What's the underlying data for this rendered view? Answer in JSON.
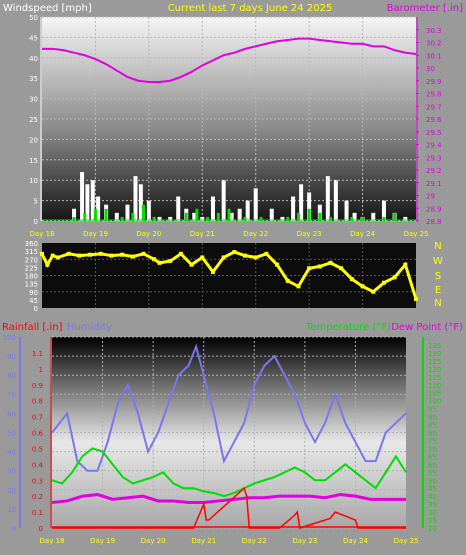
{
  "header": {
    "left_label": "Windspeed [mph]",
    "center_label": "Current last 7 days June 24 2025",
    "right_label": "Barometer [.in]"
  },
  "bottom_header": {
    "rain_label": "Rainfall [.in]",
    "humidity_label": "Humidity",
    "temp_label": "Temperature (°F)",
    "dew_label": "Dew Point (°F)"
  },
  "colors": {
    "wind": "#ffffff",
    "gust_green": "#00e000",
    "barometer": "#e000e0",
    "direction": "#ffff00",
    "rain": "#ff0000",
    "humidity": "#7777ee",
    "temperature": "#00dd00",
    "dewpoint": "#e000e0",
    "outer_bg": "#9a9a9a"
  },
  "chart_data": [
    {
      "id": "wind-baro",
      "type": "line",
      "x_labels": [
        "Day 18",
        "Day 19",
        "Day 20",
        "Day 21",
        "Day 22",
        "Day 23",
        "Day 24",
        "Day 25"
      ],
      "left_axis": {
        "label": "Windspeed [mph]",
        "ylim": [
          0,
          50
        ],
        "ticks": [
          0,
          5,
          10,
          15,
          20,
          25,
          30,
          35,
          40,
          45,
          50
        ]
      },
      "right_axis": {
        "label": "Barometer [.in]",
        "ylim": [
          28.8,
          30.4
        ],
        "ticks": [
          "28.8",
          "28.9",
          "29",
          "29.1",
          "29.2",
          "29.3",
          "29.4",
          "29.5",
          "29.6",
          "29.7",
          "29.8",
          "29.9",
          "30",
          "30.1",
          "30.2",
          "30.3"
        ]
      },
      "series": [
        {
          "name": "Barometer",
          "axis": "right",
          "x": [
            0,
            0.2,
            0.4,
            0.6,
            0.8,
            1.0,
            1.2,
            1.4,
            1.6,
            1.8,
            2.0,
            2.2,
            2.4,
            2.6,
            2.8,
            3.0,
            3.2,
            3.4,
            3.6,
            3.8,
            4.0,
            4.2,
            4.4,
            4.6,
            4.8,
            5.0,
            5.2,
            5.4,
            5.6,
            5.8,
            6.0,
            6.2,
            6.4,
            6.6,
            6.8,
            7.0
          ],
          "values": [
            30.15,
            30.15,
            30.14,
            30.12,
            30.1,
            30.07,
            30.03,
            29.98,
            29.93,
            29.9,
            29.89,
            29.89,
            29.9,
            29.93,
            29.97,
            30.02,
            30.06,
            30.1,
            30.12,
            30.15,
            30.17,
            30.19,
            30.21,
            30.22,
            30.23,
            30.23,
            30.22,
            30.21,
            30.2,
            30.19,
            30.19,
            30.17,
            30.17,
            30.14,
            30.12,
            30.11
          ]
        },
        {
          "name": "Windspeed",
          "axis": "left",
          "x": [
            0.6,
            0.75,
            0.85,
            0.95,
            1.05,
            1.2,
            1.4,
            1.6,
            1.75,
            1.85,
            2.0,
            2.2,
            2.4,
            2.55,
            2.7,
            2.85,
            3.0,
            3.2,
            3.4,
            3.55,
            3.7,
            3.85,
            4.0,
            4.3,
            4.5,
            4.7,
            4.85,
            5.0,
            5.2,
            5.35,
            5.5,
            5.7,
            5.85,
            6.0,
            6.2,
            6.4,
            6.6,
            6.8
          ],
          "values": [
            3,
            12,
            9,
            10,
            6,
            4,
            2,
            4,
            11,
            9,
            5,
            1,
            1,
            6,
            3,
            2,
            1,
            6,
            10,
            2,
            3,
            5,
            8,
            3,
            1,
            6,
            9,
            7,
            4,
            11,
            10,
            5,
            2,
            1,
            2,
            5,
            2,
            1
          ]
        },
        {
          "name": "Gust",
          "axis": "left",
          "x": [
            0.6,
            0.8,
            1.0,
            1.2,
            1.5,
            1.7,
            1.9,
            2.1,
            2.4,
            2.7,
            2.9,
            3.1,
            3.3,
            3.5,
            3.8,
            4.1,
            4.4,
            4.6,
            4.8,
            5.0,
            5.2,
            5.4,
            5.6,
            5.8,
            6.0,
            6.2,
            6.4,
            6.6,
            6.8
          ],
          "values": [
            1,
            2,
            3,
            3,
            1,
            2,
            4,
            1,
            0,
            2,
            3,
            1,
            2,
            3,
            1,
            1,
            0,
            1,
            2,
            3,
            2,
            1,
            0,
            1,
            1,
            0,
            1,
            2,
            0
          ]
        }
      ]
    },
    {
      "id": "wind-direction",
      "type": "scatter",
      "x_labels": [
        "Day 18",
        "Day 19",
        "Day 20",
        "Day 21",
        "Day 22",
        "Day 23",
        "Day 24",
        "Day 25"
      ],
      "left_axis": {
        "ylim": [
          0,
          360
        ],
        "ticks": [
          0,
          45,
          90,
          135,
          180,
          225,
          270,
          315,
          360
        ]
      },
      "right_axis": {
        "ticks": [
          "N",
          "W",
          "S",
          "E",
          "N"
        ]
      },
      "series": [
        {
          "name": "Wind Direction",
          "x": [
            0,
            0.1,
            0.2,
            0.3,
            0.5,
            0.7,
            0.9,
            1.1,
            1.3,
            1.5,
            1.7,
            1.9,
            2.1,
            2.2,
            2.4,
            2.6,
            2.8,
            3.0,
            3.2,
            3.4,
            3.6,
            3.8,
            4.0,
            4.2,
            4.4,
            4.6,
            4.8,
            5.0,
            5.2,
            5.4,
            5.6,
            5.8,
            6.0,
            6.2,
            6.4,
            6.6,
            6.8,
            7.0
          ],
          "values": [
            300,
            240,
            290,
            280,
            300,
            290,
            295,
            300,
            290,
            295,
            285,
            300,
            270,
            250,
            260,
            300,
            240,
            280,
            200,
            280,
            310,
            290,
            280,
            300,
            240,
            150,
            120,
            220,
            230,
            250,
            220,
            160,
            120,
            90,
            140,
            170,
            240,
            50
          ]
        }
      ]
    },
    {
      "id": "rain-hum-temp",
      "type": "line",
      "x_labels": [
        "Day 18",
        "Day 19",
        "Day 20",
        "Day 21",
        "Day 22",
        "Day 23",
        "Day 24",
        "Day 25"
      ],
      "humidity_axis": {
        "ylim": [
          0,
          100
        ],
        "ticks": [
          0,
          10,
          20,
          30,
          40,
          50,
          60,
          70,
          80,
          90,
          100
        ]
      },
      "rain_axis": {
        "ylim": [
          0,
          1.2
        ],
        "ticks": [
          "0",
          "0.1",
          "0.2",
          "0.3",
          "0.4",
          "0.5",
          "0.6",
          "0.7",
          "0.8",
          "0.9",
          "1",
          "1.1"
        ]
      },
      "temp_axis": {
        "ylim": [
          20,
          140
        ],
        "ticks": [
          20,
          25,
          30,
          35,
          40,
          45,
          50,
          55,
          60,
          65,
          70,
          75,
          80,
          85,
          90,
          95,
          100,
          105,
          110,
          115,
          120,
          125,
          130,
          135
        ]
      },
      "series": [
        {
          "name": "Humidity",
          "axis": "humidity",
          "x": [
            0,
            0.15,
            0.3,
            0.5,
            0.7,
            0.9,
            1.1,
            1.3,
            1.5,
            1.7,
            1.9,
            2.1,
            2.3,
            2.5,
            2.7,
            2.85,
            3.0,
            3.2,
            3.4,
            3.6,
            3.8,
            4.0,
            4.2,
            4.4,
            4.6,
            4.8,
            5.0,
            5.2,
            5.4,
            5.6,
            5.8,
            6.0,
            6.2,
            6.4,
            6.6,
            6.8,
            7.0
          ],
          "values": [
            50,
            55,
            60,
            35,
            30,
            30,
            45,
            65,
            75,
            60,
            40,
            50,
            65,
            80,
            85,
            95,
            80,
            60,
            35,
            45,
            55,
            75,
            85,
            90,
            80,
            70,
            55,
            45,
            55,
            70,
            55,
            45,
            35,
            35,
            50,
            55,
            60
          ]
        },
        {
          "name": "Temperature",
          "axis": "temp",
          "x": [
            0,
            0.2,
            0.4,
            0.6,
            0.8,
            1.0,
            1.2,
            1.4,
            1.6,
            1.8,
            2.0,
            2.2,
            2.4,
            2.6,
            2.8,
            3.0,
            3.2,
            3.4,
            3.6,
            3.8,
            4.0,
            4.2,
            4.4,
            4.6,
            4.8,
            5.0,
            5.2,
            5.4,
            5.6,
            5.8,
            6.0,
            6.2,
            6.4,
            6.6,
            6.8,
            7.0
          ],
          "values": [
            50,
            48,
            55,
            65,
            70,
            68,
            60,
            52,
            48,
            50,
            52,
            55,
            48,
            45,
            45,
            43,
            42,
            40,
            42,
            45,
            48,
            50,
            52,
            55,
            58,
            55,
            50,
            50,
            55,
            60,
            55,
            50,
            45,
            55,
            65,
            55
          ]
        },
        {
          "name": "Dew Point",
          "axis": "temp",
          "x": [
            0,
            0.3,
            0.6,
            0.9,
            1.2,
            1.5,
            1.8,
            2.1,
            2.4,
            2.7,
            3.0,
            3.3,
            3.6,
            3.9,
            4.2,
            4.5,
            4.8,
            5.1,
            5.4,
            5.7,
            6.0,
            6.3,
            6.6,
            7.0
          ],
          "values": [
            36,
            37,
            40,
            41,
            38,
            39,
            40,
            37,
            37,
            36,
            36,
            37,
            38,
            39,
            39,
            40,
            40,
            40,
            39,
            41,
            40,
            38,
            38,
            38
          ]
        },
        {
          "name": "Rainfall",
          "axis": "rain",
          "x": [
            0,
            2.75,
            2.8,
            3.0,
            3.05,
            3.1,
            3.8,
            3.85,
            3.9,
            4.5,
            4.8,
            4.85,
            4.9,
            5.3,
            5.5,
            5.6,
            6.0,
            6.05,
            6.1,
            7.0
          ],
          "values": [
            0,
            0,
            0,
            0.15,
            0.05,
            0.05,
            0.25,
            0.2,
            0,
            0,
            0.08,
            0.1,
            0,
            0.04,
            0.06,
            0.1,
            0.05,
            0,
            0,
            0
          ]
        }
      ]
    }
  ]
}
